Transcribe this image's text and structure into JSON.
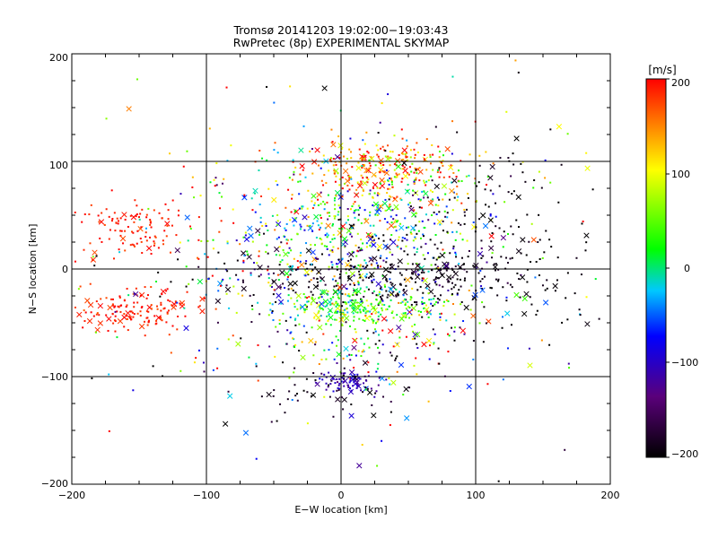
{
  "chart_data": {
    "type": "scatter",
    "title": "Tromsø 20141203 19:02:00−19:03:43",
    "subtitle": "RwPretec (8p) EXPERIMENTAL SKYMAP",
    "xlabel": "E−W location [km]",
    "ylabel": "N−S location [km]",
    "xlim": [
      -200,
      200
    ],
    "ylim": [
      -200,
      200
    ],
    "xticks": [
      -200,
      -100,
      0,
      100,
      200
    ],
    "yticks": [
      -200,
      -100,
      0,
      100,
      200
    ],
    "xtick_labels": [
      "−200",
      "−100",
      "0",
      "100",
      "200"
    ],
    "ytick_labels": [
      "−200",
      "−100",
      "0",
      "100",
      "200"
    ],
    "grid": true,
    "markers": {
      "small": "dot",
      "large": "x"
    },
    "colorbar": {
      "label": "[m/s]",
      "range": [
        -200,
        200
      ],
      "ticks": [
        200,
        100,
        0,
        -100,
        -200
      ],
      "tick_labels": [
        "200",
        "100",
        "0",
        "−100",
        "−200"
      ],
      "colormap": [
        "#000000",
        "#5a007a",
        "#0000ff",
        "#00c8ff",
        "#00ff00",
        "#ffff00",
        "#ff0000"
      ]
    },
    "clusters": [
      {
        "name": "west_north",
        "cx": -155,
        "cy": 38,
        "sx": 22,
        "sy": 14,
        "n": 110,
        "v": 190,
        "vs": 12
      },
      {
        "name": "west_south",
        "cx": -155,
        "cy": -38,
        "sx": 25,
        "sy": 9,
        "n": 150,
        "v": 190,
        "vs": 12
      },
      {
        "name": "north_arc",
        "cx": 30,
        "cy": 95,
        "sx": 32,
        "sy": 14,
        "n": 260,
        "v": 160,
        "vs": 55
      },
      {
        "name": "north_mid",
        "cx": 25,
        "cy": 55,
        "sx": 40,
        "sy": 22,
        "n": 240,
        "v": 30,
        "vs": 80
      },
      {
        "name": "center",
        "cx": 20,
        "cy": 10,
        "sx": 55,
        "sy": 28,
        "n": 300,
        "v": -40,
        "vs": 110
      },
      {
        "name": "center_black",
        "cx": 40,
        "cy": -8,
        "sx": 55,
        "sy": 14,
        "n": 260,
        "v": -190,
        "vs": 10
      },
      {
        "name": "south_band",
        "cx": 15,
        "cy": -35,
        "sx": 30,
        "sy": 8,
        "n": 220,
        "v": 40,
        "vs": 40
      },
      {
        "name": "south_wide",
        "cx": 10,
        "cy": -60,
        "sx": 60,
        "sy": 25,
        "n": 160,
        "v": 0,
        "vs": 150
      },
      {
        "name": "south_blue",
        "cx": 5,
        "cy": -105,
        "sx": 12,
        "sy": 5,
        "n": 70,
        "v": -110,
        "vs": 15
      },
      {
        "name": "south_black",
        "cx": -10,
        "cy": -110,
        "sx": 30,
        "sy": 12,
        "n": 50,
        "v": -185,
        "vs": 12
      },
      {
        "name": "east_black",
        "cx": 110,
        "cy": 30,
        "sx": 40,
        "sy": 50,
        "n": 140,
        "v": -195,
        "vs": 8
      },
      {
        "name": "west_mid",
        "cx": -50,
        "cy": 20,
        "sx": 40,
        "sy": 45,
        "n": 180,
        "v": 0,
        "vs": 140
      },
      {
        "name": "sparse",
        "cx": 0,
        "cy": 0,
        "sx": 110,
        "sy": 100,
        "n": 260,
        "v": 0,
        "vs": 160
      }
    ]
  }
}
